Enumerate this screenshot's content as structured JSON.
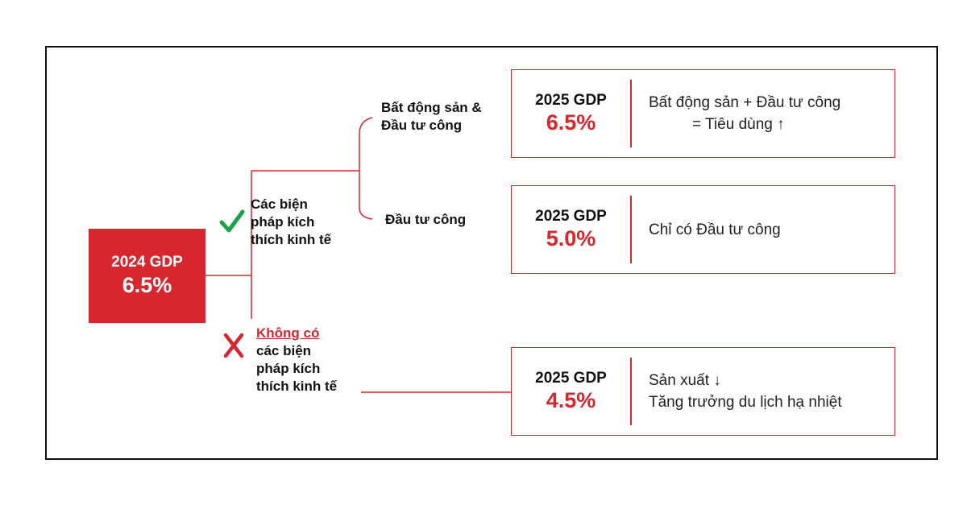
{
  "root": {
    "label": "2024 GDP",
    "value": "6.5%"
  },
  "branches": {
    "stimulus": {
      "label_lines": [
        "Các biện",
        "pháp kích",
        "thích kinh tế"
      ]
    },
    "no_stimulus": {
      "label_neg": "Không có",
      "label_lines": [
        "các biện",
        "pháp kích",
        "thích kinh tế"
      ]
    }
  },
  "sub_branches": {
    "real_estate_public": {
      "label_lines": [
        "Bất động sản &",
        "Đầu tư công"
      ]
    },
    "public_only": {
      "label": "Đầu tư công"
    }
  },
  "outcomes": [
    {
      "gdp_label": "2025 GDP",
      "gdp_value": "6.5%",
      "desc_lines": [
        "Bất động sản + Đầu tư công",
        "= Tiêu dùng ↑"
      ]
    },
    {
      "gdp_label": "2025 GDP",
      "gdp_value": "5.0%",
      "desc_lines": [
        "Chỉ có Đầu tư công"
      ]
    },
    {
      "gdp_label": "2025 GDP",
      "gdp_value": "4.5%",
      "desc_lines": [
        "Sản xuất ↓",
        "Tăng trưởng du lịch hạ nhiệt"
      ]
    }
  ],
  "colors": {
    "accent": "#d7262d",
    "check": "#1aa34a",
    "text": "#111111"
  }
}
